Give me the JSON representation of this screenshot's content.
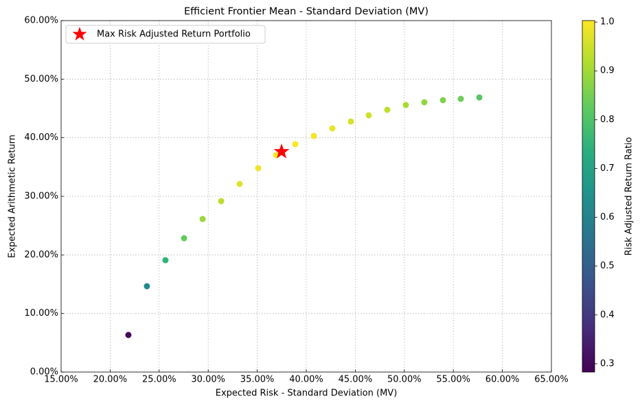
{
  "chart_data": {
    "type": "scatter",
    "title": "Efficient Frontier Mean - Standard Deviation (MV)",
    "xlabel": "Expected Risk - Standard Deviation (MV)",
    "ylabel": "Expected Arithmetic Return",
    "x": [
      21.86,
      23.75,
      25.64,
      27.54,
      29.43,
      31.32,
      33.21,
      35.1,
      36.92,
      38.88,
      40.77,
      42.66,
      44.55,
      46.37,
      48.26,
      50.15,
      52.04,
      53.94,
      55.76,
      57.65
    ],
    "values": [
      6.33,
      14.65,
      19.1,
      22.85,
      26.13,
      29.18,
      32.11,
      34.8,
      37.03,
      38.9,
      40.31,
      41.6,
      42.77,
      43.83,
      44.77,
      45.59,
      46.06,
      46.41,
      46.64,
      46.88
    ],
    "color_values": [
      0.29,
      0.62,
      0.75,
      0.83,
      0.89,
      0.93,
      0.97,
      0.99,
      1.0,
      1.0,
      0.99,
      0.98,
      0.96,
      0.95,
      0.93,
      0.91,
      0.88,
      0.86,
      0.84,
      0.81
    ],
    "highlight": {
      "name": "Max Risk Adjusted Return Portfolio",
      "x": 37.48,
      "y": 37.62,
      "color": "#ff0000",
      "marker": "star"
    },
    "xlim": [
      15,
      65
    ],
    "xticks": [
      {
        "value": 15,
        "label": "15.00%"
      },
      {
        "value": 20,
        "label": "20.00%"
      },
      {
        "value": 25,
        "label": "25.00%"
      },
      {
        "value": 30,
        "label": "30.00%"
      },
      {
        "value": 35,
        "label": "35.00%"
      },
      {
        "value": 40,
        "label": "40.00%"
      },
      {
        "value": 45,
        "label": "45.00%"
      },
      {
        "value": 50,
        "label": "50.00%"
      },
      {
        "value": 55,
        "label": "55.00%"
      },
      {
        "value": 60,
        "label": "60.00%"
      },
      {
        "value": 65,
        "label": "65.00%"
      }
    ],
    "ylim": [
      0,
      60
    ],
    "yticks": [
      {
        "value": 0,
        "label": "0.00%"
      },
      {
        "value": 10,
        "label": "10.00%"
      },
      {
        "value": 20,
        "label": "20.00%"
      },
      {
        "value": 30,
        "label": "30.00%"
      },
      {
        "value": 40,
        "label": "40.00%"
      },
      {
        "value": 50,
        "label": "50.00%"
      },
      {
        "value": 60,
        "label": "60.00%"
      }
    ],
    "grid": true,
    "legend": "upper left",
    "colorbar": {
      "label": "Risk Adjusted Return Ratio",
      "colormap": "viridis",
      "lim": [
        0.283,
        1.003
      ],
      "ticks": [
        0.3,
        0.4,
        0.5,
        0.6,
        0.7,
        0.8,
        0.9,
        {
          "value": 1,
          "label": "1.0"
        }
      ]
    }
  }
}
